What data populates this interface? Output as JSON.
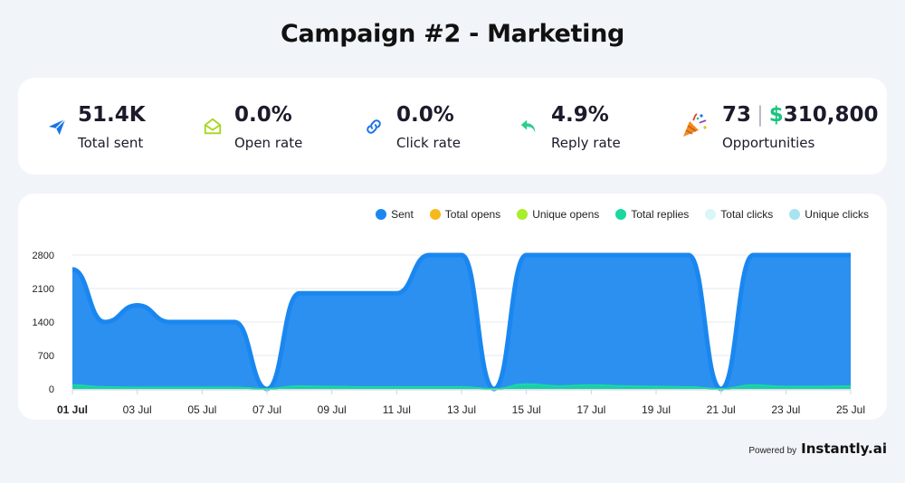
{
  "title": "Campaign #2 - Marketing",
  "stats": [
    {
      "icon": "paper-plane-icon",
      "value": "51.4K",
      "label": "Total sent",
      "color": "#1a73e8"
    },
    {
      "icon": "open-envelope-icon",
      "value": "0.0%",
      "label": "Open rate",
      "color": "#a8d51a"
    },
    {
      "icon": "link-icon",
      "value": "0.0%",
      "label": "Click rate",
      "color": "#1a73e8"
    },
    {
      "icon": "reply-arrow-icon",
      "value": "4.9%",
      "label": "Reply rate",
      "color": "#2ecc8f"
    }
  ],
  "opportunities": {
    "icon": "party-popper-icon",
    "count": "73",
    "separator": "|",
    "currency": "$",
    "amount": "310,800",
    "label": "Opportunities"
  },
  "legend": [
    {
      "name": "Sent",
      "color": "#1a87f0"
    },
    {
      "name": "Total opens",
      "color": "#f5b91a"
    },
    {
      "name": "Unique opens",
      "color": "#a8ee2a"
    },
    {
      "name": "Total replies",
      "color": "#19d8a0"
    },
    {
      "name": "Total clicks",
      "color": "#d9f6fb"
    },
    {
      "name": "Unique clicks",
      "color": "#a8e3f2"
    }
  ],
  "chart_data": {
    "type": "area",
    "x": [
      "01 Jul",
      "02 Jul",
      "03 Jul",
      "04 Jul",
      "05 Jul",
      "06 Jul",
      "07 Jul",
      "08 Jul",
      "09 Jul",
      "10 Jul",
      "11 Jul",
      "12 Jul",
      "13 Jul",
      "14 Jul",
      "15 Jul",
      "16 Jul",
      "17 Jul",
      "18 Jul",
      "19 Jul",
      "20 Jul",
      "21 Jul",
      "22 Jul",
      "23 Jul",
      "24 Jul",
      "25 Jul"
    ],
    "x_tick_labels": [
      "01 Jul",
      "03 Jul",
      "05 Jul",
      "07 Jul",
      "09 Jul",
      "11 Jul",
      "13 Jul",
      "15 Jul",
      "17 Jul",
      "19 Jul",
      "21 Jul",
      "23 Jul",
      "25 Jul"
    ],
    "series": [
      {
        "name": "Sent",
        "color": "#1a87f0",
        "values": [
          2500,
          1400,
          1750,
          1400,
          1400,
          1400,
          0,
          2000,
          2000,
          2000,
          2000,
          2800,
          2800,
          0,
          2800,
          2800,
          2800,
          2800,
          2800,
          2800,
          0,
          2800,
          2800,
          2800,
          2800
        ]
      },
      {
        "name": "Total replies",
        "color": "#19d8a0",
        "values": [
          80,
          40,
          30,
          30,
          30,
          30,
          0,
          60,
          50,
          40,
          40,
          40,
          40,
          0,
          100,
          60,
          80,
          60,
          50,
          40,
          0,
          80,
          50,
          50,
          60
        ]
      }
    ],
    "yticks": [
      0,
      700,
      1400,
      2100,
      2800
    ],
    "ylim": [
      0,
      2800
    ],
    "grid": true,
    "legend_position": "top-right"
  },
  "footer": {
    "powered_by": "Powered by",
    "brand": "Instantly.ai"
  }
}
